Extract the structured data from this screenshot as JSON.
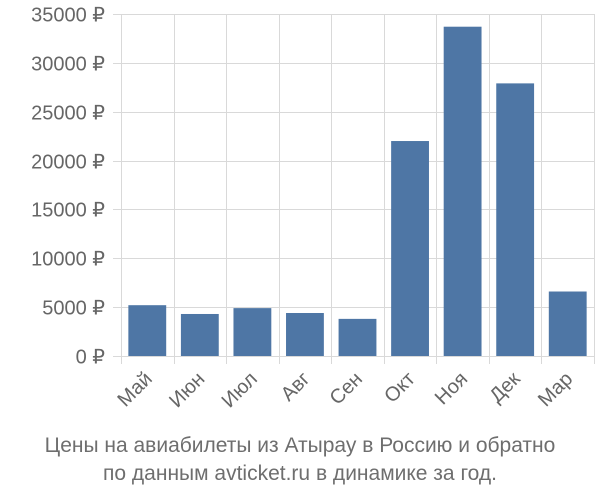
{
  "chart_data": {
    "type": "bar",
    "categories": [
      "Май",
      "Июн",
      "Июл",
      "Авг",
      "Сен",
      "Окт",
      "Ноя",
      "Дек",
      "Мар"
    ],
    "values": [
      5200,
      4300,
      4900,
      4400,
      3800,
      22000,
      33700,
      27900,
      6600
    ],
    "ylim": [
      0,
      35000
    ],
    "yticks": [
      0,
      5000,
      10000,
      15000,
      20000,
      25000,
      30000,
      35000
    ],
    "ytick_labels": [
      "0 ₽",
      "5000 ₽",
      "10000 ₽",
      "15000 ₽",
      "20000 ₽",
      "25000 ₽",
      "30000 ₽",
      "35000 ₽"
    ],
    "grid": true,
    "colors": {
      "bar": "#4e76a5",
      "grid": "#d9d9d9",
      "axis_text": "#666666"
    }
  },
  "caption": {
    "line1": "Цены на авиабилеты из Атырау в Россию и обратно",
    "line2": "по данным avticket.ru в динамике за год."
  }
}
